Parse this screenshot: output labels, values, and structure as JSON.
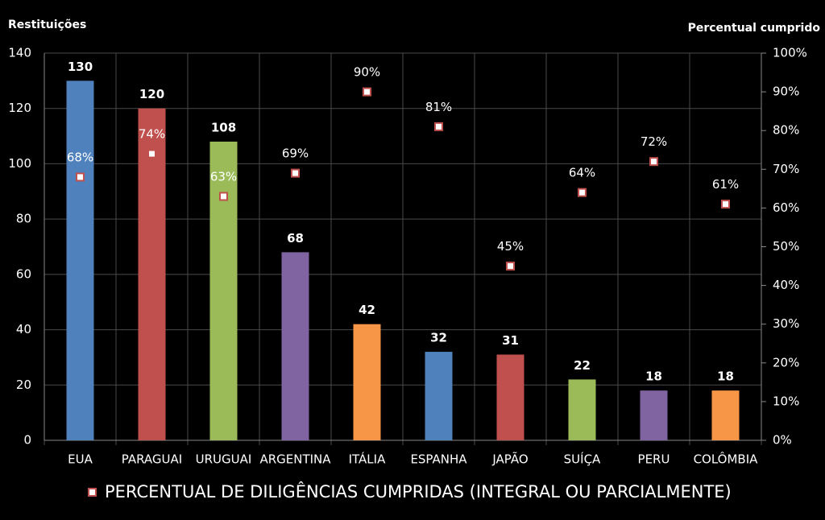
{
  "chart_data": {
    "type": "bar",
    "ylabel": "Restituições",
    "y2label": "Percentual cumprido",
    "categories": [
      "EUA",
      "PARAGUAI",
      "URUGUAI",
      "ARGENTINA",
      "ITÁLIA",
      "ESPANHA",
      "JAPÃO",
      "SUÍÇA",
      "PERU",
      "COLÔMBIA"
    ],
    "values": [
      130,
      120,
      108,
      68,
      42,
      32,
      31,
      22,
      18,
      18
    ],
    "colors": [
      "#4f81bd",
      "#c0504d",
      "#9bbb59",
      "#8064a2",
      "#f79646",
      "#4f81bd",
      "#c0504d",
      "#9bbb59",
      "#8064a2",
      "#f79646"
    ],
    "ylim": [
      0,
      140
    ],
    "yticks": [
      0,
      20,
      40,
      60,
      80,
      100,
      120,
      140
    ],
    "y2lim": [
      0,
      100
    ],
    "y2ticks": [
      {
        "value": 0,
        "label": "0%"
      },
      {
        "value": 10,
        "label": "10%"
      },
      {
        "value": 20,
        "label": "20%"
      },
      {
        "value": 30,
        "label": "30%"
      },
      {
        "value": 40,
        "label": "40%"
      },
      {
        "value": 50,
        "label": "50%"
      },
      {
        "value": 60,
        "label": "60%"
      },
      {
        "value": 70,
        "label": "70%"
      },
      {
        "value": 80,
        "label": "80%"
      },
      {
        "value": 90,
        "label": "90%"
      },
      {
        "value": 100,
        "label": "100%"
      }
    ],
    "grid": true,
    "series": [
      {
        "name": "PERCENTUAL DE DILIGÊNCIAS CUMPRIDAS (INTEGRAL OU PARCIALMENTE)",
        "type": "scatter",
        "axis": "y2",
        "color": "#c0504d",
        "values": [
          68,
          74,
          63,
          69,
          90,
          81,
          45,
          64,
          72,
          61
        ],
        "value_labels": [
          "68%",
          "74%",
          "63%",
          "69%",
          "90%",
          "81%",
          "45%",
          "64%",
          "72%",
          "61%"
        ]
      }
    ]
  }
}
